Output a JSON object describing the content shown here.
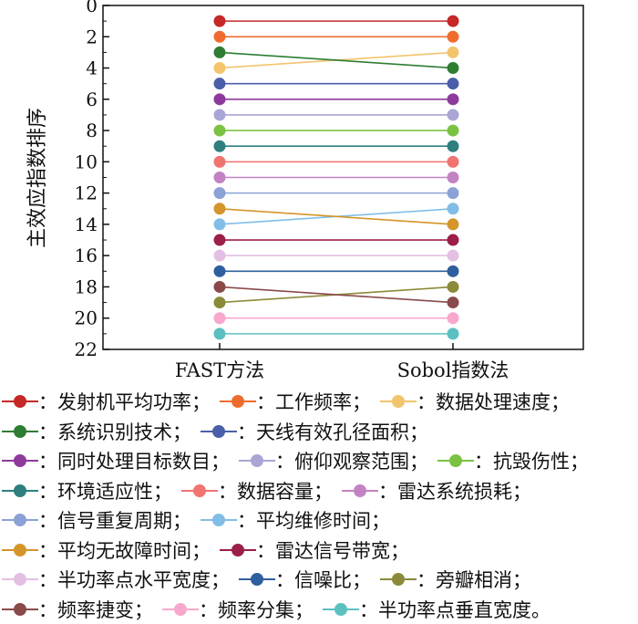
{
  "chart_data": {
    "type": "line",
    "title": "",
    "xlabel": "",
    "ylabel": "主效应指数排序",
    "categories": [
      "FAST方法",
      "Sobol指数法"
    ],
    "ylim": [
      0,
      22
    ],
    "y_inverted": true,
    "yticks": [
      "0",
      "2",
      "4",
      "6",
      "8",
      "10",
      "12",
      "14",
      "16",
      "18",
      "20",
      "22"
    ],
    "grid": false,
    "legend_position": "below",
    "series": [
      {
        "name": "发射机平均功率",
        "values": [
          1,
          1
        ],
        "color": "#c62828"
      },
      {
        "name": "工作频率",
        "values": [
          2,
          2
        ],
        "color": "#ef6c2f"
      },
      {
        "name": "数据处理速度",
        "values": [
          4,
          3
        ],
        "color": "#f2c46c"
      },
      {
        "name": "系统识别技术",
        "values": [
          3,
          4
        ],
        "color": "#2e7d32"
      },
      {
        "name": "天线有效孔径面积",
        "values": [
          5,
          5
        ],
        "color": "#4a5fa8"
      },
      {
        "name": "同时处理目标数目",
        "values": [
          6,
          6
        ],
        "color": "#8e3a9c"
      },
      {
        "name": "俯仰观察范围",
        "values": [
          7,
          7
        ],
        "color": "#a9a6d6"
      },
      {
        "name": "抗毁伤性",
        "values": [
          8,
          8
        ],
        "color": "#7cc242"
      },
      {
        "name": "环境适应性",
        "values": [
          9,
          9
        ],
        "color": "#2f7f7f"
      },
      {
        "name": "数据容量",
        "values": [
          10,
          10
        ],
        "color": "#f07470"
      },
      {
        "name": "雷达系统损耗",
        "values": [
          11,
          11
        ],
        "color": "#c383c3"
      },
      {
        "name": "信号重复周期",
        "values": [
          12,
          12
        ],
        "color": "#8ca2d6"
      },
      {
        "name": "平均维修时间",
        "values": [
          14,
          13
        ],
        "color": "#82bde8"
      },
      {
        "name": "平均无故障时间",
        "values": [
          13,
          14
        ],
        "color": "#d4952a"
      },
      {
        "name": "雷达信号带宽",
        "values": [
          15,
          15
        ],
        "color": "#9b1f46"
      },
      {
        "name": "半功率点水平宽度",
        "values": [
          16,
          16
        ],
        "color": "#e4bfe4"
      },
      {
        "name": "信噪比",
        "values": [
          17,
          17
        ],
        "color": "#2f5f9e"
      },
      {
        "name": "旁瓣相消",
        "values": [
          19,
          18
        ],
        "color": "#8a8a3a"
      },
      {
        "name": "频率捷变",
        "values": [
          18,
          19
        ],
        "color": "#8a4a4a"
      },
      {
        "name": "频率分集",
        "values": [
          20,
          20
        ],
        "color": "#f7a8cc"
      },
      {
        "name": "半功率点垂直宽度",
        "values": [
          21,
          21
        ],
        "color": "#5cc0c0"
      }
    ]
  },
  "legend": {
    "separator": "：",
    "rows": [
      [
        {
          "i": 0,
          "sep": "；"
        },
        {
          "i": 1,
          "sep": "；"
        },
        {
          "i": 2,
          "sep": "；"
        }
      ],
      [
        {
          "i": 3,
          "sep": "；"
        },
        {
          "i": 4,
          "sep": "；"
        }
      ],
      [
        {
          "i": 5,
          "sep": "；"
        },
        {
          "i": 6,
          "sep": "；"
        },
        {
          "i": 7,
          "sep": "；"
        }
      ],
      [
        {
          "i": 8,
          "sep": "；"
        },
        {
          "i": 9,
          "sep": "；"
        },
        {
          "i": 10,
          "sep": "；"
        }
      ],
      [
        {
          "i": 11,
          "sep": "；"
        },
        {
          "i": 12,
          "sep": "；"
        }
      ],
      [
        {
          "i": 13,
          "sep": "；"
        },
        {
          "i": 14,
          "sep": "；"
        }
      ],
      [
        {
          "i": 15,
          "sep": "；"
        },
        {
          "i": 16,
          "sep": "；"
        },
        {
          "i": 17,
          "sep": "；"
        }
      ],
      [
        {
          "i": 18,
          "sep": "；"
        },
        {
          "i": 19,
          "sep": "；"
        },
        {
          "i": 20,
          "sep": "。"
        }
      ]
    ]
  }
}
